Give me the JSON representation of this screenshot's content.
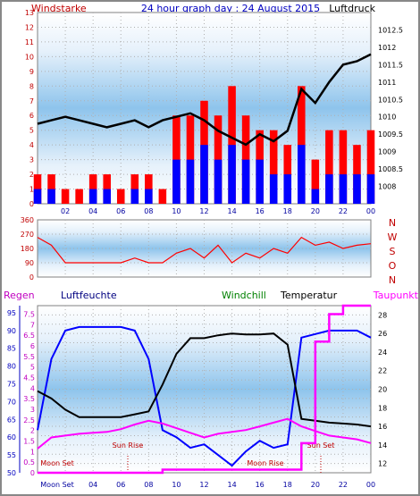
{
  "chart_data": [
    {
      "type": "bar+line",
      "title": "24 hour graph day : 24 August 2015",
      "ylabel_left": "Windstarke",
      "ylabel_right": "Luftdruck",
      "x_ticks": [
        "02",
        "04",
        "06",
        "08",
        "10",
        "12",
        "14",
        "16",
        "18",
        "20",
        "22",
        "00"
      ],
      "ylim_left": [
        0,
        13
      ],
      "ylim_right": [
        1007.5,
        1013.0
      ],
      "y_ticks_left": [
        0,
        1,
        2,
        3,
        4,
        5,
        6,
        7,
        8,
        9,
        10,
        11,
        12,
        13
      ],
      "y_ticks_right": [
        "1008",
        "1008.5",
        "1009",
        "1009.5",
        "1010",
        "1010.5",
        "1011",
        "1011.5",
        "1012",
        "1012.5"
      ],
      "grid": true,
      "series": [
        {
          "name": "Windstarke",
          "style": "bars",
          "color": "#ff0000",
          "x": [
            0,
            1,
            2,
            3,
            4,
            5,
            6,
            7,
            8,
            9,
            10,
            11,
            12,
            13,
            14,
            15,
            16,
            17,
            18,
            19,
            20,
            21,
            22,
            23,
            24
          ],
          "values": [
            2,
            2,
            1,
            1,
            2,
            2,
            1,
            2,
            2,
            1,
            6,
            6,
            7,
            6,
            8,
            6,
            5,
            5,
            4,
            8,
            3,
            5,
            5,
            4,
            5
          ]
        },
        {
          "name": "Windboen",
          "style": "bars",
          "color": "#0000ff",
          "x": [
            0,
            1,
            2,
            3,
            4,
            5,
            6,
            7,
            8,
            9,
            10,
            11,
            12,
            13,
            14,
            15,
            16,
            17,
            18,
            19,
            20,
            21,
            22,
            23,
            24
          ],
          "values": [
            1,
            1,
            0,
            0,
            1,
            1,
            0,
            1,
            1,
            0,
            3,
            3,
            4,
            3,
            4,
            3,
            3,
            2,
            2,
            4,
            1,
            2,
            2,
            2,
            2
          ]
        },
        {
          "name": "Luftdruck",
          "style": "line",
          "color": "#000000",
          "x": [
            0,
            1,
            2,
            3,
            4,
            5,
            6,
            7,
            8,
            9,
            10,
            11,
            12,
            13,
            14,
            15,
            16,
            17,
            18,
            19,
            20,
            21,
            22,
            23,
            24
          ],
          "values": [
            1009.8,
            1009.9,
            1010.0,
            1009.9,
            1009.8,
            1009.7,
            1009.8,
            1009.9,
            1009.7,
            1009.9,
            1010.0,
            1010.1,
            1009.9,
            1009.6,
            1009.4,
            1009.2,
            1009.5,
            1009.3,
            1009.6,
            1010.8,
            1010.4,
            1011.0,
            1011.5,
            1011.6,
            1011.8
          ]
        }
      ]
    },
    {
      "type": "line",
      "ylabel_right": [
        "N",
        "W",
        "S",
        "O",
        "N"
      ],
      "ylim": [
        0,
        360
      ],
      "y_ticks": [
        0,
        90,
        180,
        270,
        360
      ],
      "grid": true,
      "series": [
        {
          "name": "Windrichtung",
          "color": "#ff0000",
          "x": [
            0,
            1,
            2,
            3,
            4,
            5,
            6,
            7,
            8,
            9,
            10,
            11,
            12,
            13,
            14,
            15,
            16,
            17,
            18,
            19,
            20,
            21,
            22,
            23,
            24
          ],
          "values": [
            250,
            200,
            90,
            90,
            90,
            90,
            90,
            120,
            90,
            90,
            150,
            180,
            120,
            200,
            90,
            150,
            120,
            180,
            150,
            250,
            200,
            220,
            180,
            200,
            210
          ]
        }
      ]
    },
    {
      "type": "line",
      "header_labels": [
        "Regen",
        "Luftfeuchte",
        "Windchill",
        "Temperatur",
        "Taupunkt"
      ],
      "ylim_left": [
        50,
        97
      ],
      "y_ticks_left": [
        50,
        55,
        60,
        65,
        70,
        75,
        80,
        85,
        90,
        95
      ],
      "ylim_mid": [
        0,
        7.9
      ],
      "y_ticks_mid": [
        "0",
        "0.5",
        "1",
        "1.5",
        "2",
        "2.5",
        "3",
        "3.5",
        "4",
        "4.5",
        "5",
        "5.5",
        "6",
        "6.5",
        "7",
        "7.5"
      ],
      "ylim_right": [
        11,
        29
      ],
      "y_ticks_right": [
        12,
        14,
        16,
        18,
        20,
        22,
        24,
        26,
        28
      ],
      "annotations": [
        "Moon Set",
        "Sun Rise",
        "Moon Rise",
        "Sun Set",
        "Moon Set"
      ],
      "x_ticks": [
        "02",
        "04",
        "06",
        "08",
        "10",
        "12",
        "14",
        "16",
        "18",
        "20",
        "22",
        "00"
      ],
      "grid": true,
      "series": [
        {
          "name": "Luftfeuchte",
          "color": "#0000ff",
          "x": [
            0,
            1,
            2,
            3,
            4,
            5,
            6,
            7,
            8,
            9,
            10,
            11,
            12,
            13,
            14,
            15,
            16,
            17,
            18,
            19,
            20,
            21,
            22,
            23,
            24
          ],
          "values": [
            62,
            82,
            90,
            91,
            91,
            91,
            91,
            90,
            82,
            62,
            60,
            57,
            58,
            55,
            52,
            56,
            59,
            57,
            58,
            88,
            89,
            90,
            90,
            90,
            88
          ]
        },
        {
          "name": "Temperatur",
          "color": "#000000",
          "x": [
            0,
            1,
            2,
            3,
            4,
            5,
            6,
            7,
            8,
            9,
            10,
            11,
            12,
            13,
            14,
            15,
            16,
            17,
            18,
            19,
            20,
            21,
            22,
            23,
            24
          ],
          "values": [
            19.8,
            19.0,
            17.8,
            17.0,
            17.0,
            17.0,
            17.0,
            17.3,
            17.6,
            20.5,
            23.8,
            25.5,
            25.5,
            25.8,
            26.0,
            25.9,
            25.9,
            26.0,
            24.8,
            16.8,
            16.6,
            16.4,
            16.3,
            16.2,
            16.0
          ]
        },
        {
          "name": "Taupunkt",
          "color": "#ff00ff",
          "x": [
            0,
            1,
            2,
            3,
            4,
            5,
            6,
            7,
            8,
            9,
            10,
            11,
            12,
            13,
            14,
            15,
            16,
            17,
            18,
            19,
            20,
            21,
            22,
            23,
            24
          ],
          "values": [
            13.6,
            14.8,
            15.0,
            15.2,
            15.3,
            15.4,
            15.7,
            16.2,
            16.6,
            16.3,
            15.8,
            15.3,
            14.8,
            15.2,
            15.4,
            15.6,
            16.0,
            16.4,
            16.8,
            16.0,
            15.5,
            15.0,
            14.8,
            14.6,
            14.2
          ]
        },
        {
          "name": "Regen",
          "color": "#ff00ff",
          "x": [
            0,
            1,
            2,
            3,
            4,
            5,
            6,
            7,
            8,
            9,
            10,
            11,
            12,
            13,
            14,
            15,
            16,
            17,
            18,
            19,
            20,
            21,
            22,
            23,
            24
          ],
          "values": [
            0,
            0,
            0,
            0,
            0,
            0,
            0,
            0,
            0,
            0.15,
            0.15,
            0.15,
            0.15,
            0.15,
            0.15,
            0.15,
            0.15,
            0.15,
            0.15,
            1.4,
            6.2,
            7.5,
            7.9,
            7.9,
            7.9
          ]
        }
      ]
    }
  ]
}
